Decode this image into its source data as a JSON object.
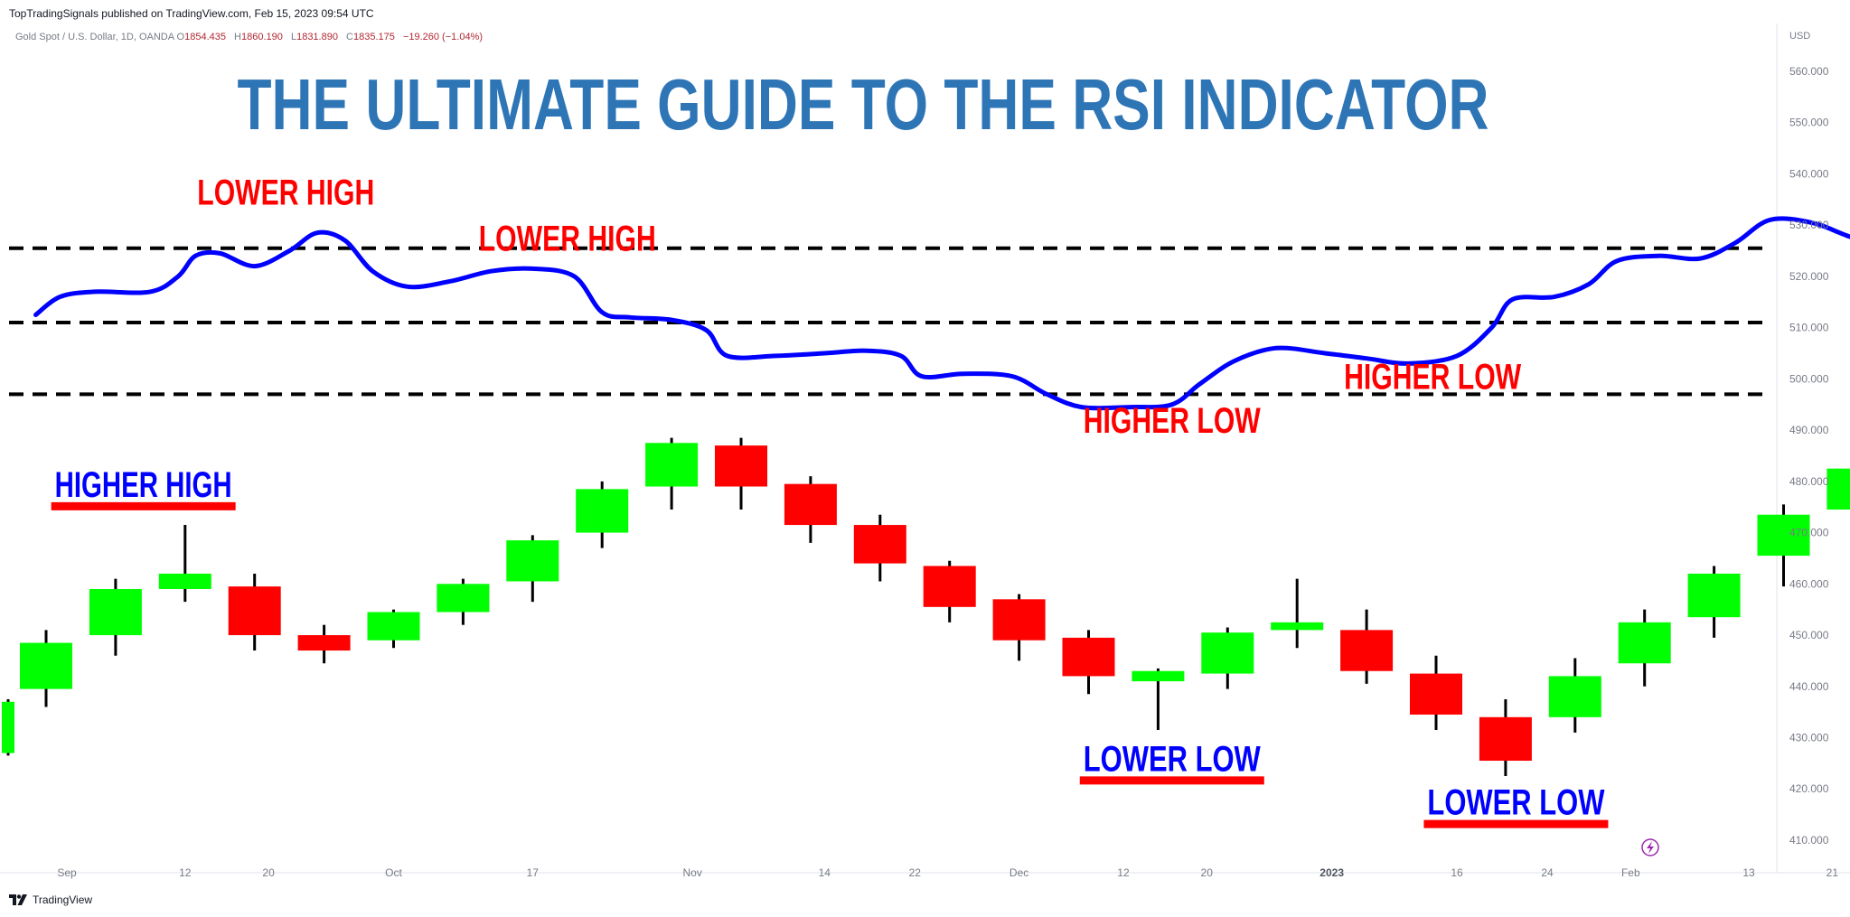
{
  "header": {
    "published": "TopTradingSignals published on TradingView.com, Feb 15, 2023 09:54 UTC",
    "symbol": "Gold Spot / U.S. Dollar, 1D, OANDA",
    "open_label": "O",
    "open": "1854.435",
    "high_label": "H",
    "high": "1860.190",
    "low_label": "L",
    "low": "1831.890",
    "close_label": "C",
    "close": "1835.175",
    "change": "−19.260 (−1.04%)",
    "currency": "USD"
  },
  "footer": {
    "brand": "TradingView",
    "logo_icon": "tradingview-logo-icon"
  },
  "colors": {
    "up": "#00ff00",
    "down": "#ff0000",
    "rsi": "#0000ff",
    "title": "#2e75b6",
    "annot_red": "#ff0000",
    "annot_blue": "#0000ff",
    "underline": "#ff0000"
  },
  "chart_data": {
    "type": "candlestick",
    "title": "THE ULTIMATE GUIDE TO THE RSI INDICATOR",
    "y_axis": {
      "side": "right",
      "range": [
        404,
        565
      ],
      "ticks": [
        "560.000",
        "550.000",
        "540.000",
        "530.000",
        "520.000",
        "510.000",
        "500.000",
        "490.000",
        "480.000",
        "470.000",
        "460.000",
        "450.000",
        "440.000",
        "430.000",
        "420.000",
        "410.000"
      ]
    },
    "x_ticks": [
      {
        "label": "Sep",
        "i": 0.3,
        "bold": false
      },
      {
        "label": "12",
        "i": 2.0,
        "bold": false
      },
      {
        "label": "20",
        "i": 3.2,
        "bold": false
      },
      {
        "label": "Oct",
        "i": 5.0,
        "bold": false
      },
      {
        "label": "17",
        "i": 7.0,
        "bold": false
      },
      {
        "label": "Nov",
        "i": 9.3,
        "bold": false
      },
      {
        "label": "14",
        "i": 11.2,
        "bold": false
      },
      {
        "label": "22",
        "i": 12.5,
        "bold": false
      },
      {
        "label": "Dec",
        "i": 14.0,
        "bold": false
      },
      {
        "label": "12",
        "i": 15.5,
        "bold": false
      },
      {
        "label": "20",
        "i": 16.7,
        "bold": false
      },
      {
        "label": "2023",
        "i": 18.5,
        "bold": true
      },
      {
        "label": "16",
        "i": 20.3,
        "bold": false
      },
      {
        "label": "24",
        "i": 21.6,
        "bold": false
      },
      {
        "label": "Feb",
        "i": 22.8,
        "bold": false
      },
      {
        "label": "13",
        "i": 24.5,
        "bold": false
      },
      {
        "label": "21",
        "i": 25.7,
        "bold": false
      }
    ],
    "candles": [
      {
        "o": 439.5,
        "h": 451,
        "l": 436,
        "c": 448.5
      },
      {
        "o": 450,
        "h": 461,
        "l": 446,
        "c": 459
      },
      {
        "o": 459,
        "h": 471.5,
        "l": 456.5,
        "c": 462
      },
      {
        "o": 459.5,
        "h": 462,
        "l": 447,
        "c": 450
      },
      {
        "o": 450,
        "h": 452,
        "l": 444.5,
        "c": 447
      },
      {
        "o": 449,
        "h": 455,
        "l": 447.5,
        "c": 454.5
      },
      {
        "o": 454.5,
        "h": 461,
        "l": 452,
        "c": 460
      },
      {
        "o": 460.5,
        "h": 469.5,
        "l": 456.5,
        "c": 468.5
      },
      {
        "o": 470,
        "h": 480,
        "l": 467,
        "c": 478.5
      },
      {
        "o": 479,
        "h": 488.5,
        "l": 474.5,
        "c": 487.5
      },
      {
        "o": 487,
        "h": 488.5,
        "l": 474.5,
        "c": 479
      },
      {
        "o": 479.5,
        "h": 481,
        "l": 468,
        "c": 471.5
      },
      {
        "o": 471.5,
        "h": 473.5,
        "l": 460.5,
        "c": 464
      },
      {
        "o": 463.5,
        "h": 464.5,
        "l": 452.5,
        "c": 455.5
      },
      {
        "o": 457,
        "h": 458,
        "l": 445,
        "c": 449
      },
      {
        "o": 449.5,
        "h": 451,
        "l": 438.5,
        "c": 442
      },
      {
        "o": 441,
        "h": 443.5,
        "l": 431.5,
        "c": 443
      },
      {
        "o": 442.5,
        "h": 451.5,
        "l": 439.5,
        "c": 450.5
      },
      {
        "o": 451,
        "h": 461,
        "l": 447.5,
        "c": 452.5
      },
      {
        "o": 451,
        "h": 455,
        "l": 440.5,
        "c": 443
      },
      {
        "o": 442.5,
        "h": 446,
        "l": 431.5,
        "c": 434.5
      },
      {
        "o": 434,
        "h": 437.5,
        "l": 422.5,
        "c": 425.5
      },
      {
        "o": 434,
        "h": 445.5,
        "l": 431,
        "c": 442
      },
      {
        "o": 444.5,
        "h": 455,
        "l": 440,
        "c": 452.5
      },
      {
        "o": 453.5,
        "h": 463.5,
        "l": 449.5,
        "c": 462
      },
      {
        "o": 465.5,
        "h": 475.5,
        "l": 459.5,
        "c": 473.5
      },
      {
        "o": 474.5,
        "h": 484.5,
        "l": 469.5,
        "c": 482.5
      }
    ],
    "partial_candle": {
      "o": 427,
      "h": 437.5,
      "l": 426.5,
      "c": 437
    },
    "rsi_line": [
      [
        -0.15,
        512.5
      ],
      [
        0.2,
        516
      ],
      [
        0.7,
        517
      ],
      [
        1.5,
        517
      ],
      [
        1.9,
        520
      ],
      [
        2.15,
        524
      ],
      [
        2.5,
        524.5
      ],
      [
        3.0,
        522
      ],
      [
        3.5,
        525
      ],
      [
        3.9,
        528.5
      ],
      [
        4.3,
        527
      ],
      [
        4.7,
        521
      ],
      [
        5.2,
        518
      ],
      [
        5.8,
        519
      ],
      [
        6.4,
        521
      ],
      [
        7.0,
        521.5
      ],
      [
        7.6,
        520
      ],
      [
        8.0,
        513
      ],
      [
        8.4,
        512
      ],
      [
        9.0,
        511.5
      ],
      [
        9.5,
        509.5
      ],
      [
        9.8,
        504.5
      ],
      [
        10.5,
        504.5
      ],
      [
        11.2,
        505
      ],
      [
        11.8,
        505.5
      ],
      [
        12.3,
        504.5
      ],
      [
        12.6,
        500.5
      ],
      [
        13.2,
        501
      ],
      [
        13.9,
        500.5
      ],
      [
        14.4,
        497
      ],
      [
        14.9,
        494.5
      ],
      [
        15.6,
        494.5
      ],
      [
        16.2,
        495
      ],
      [
        16.6,
        499
      ],
      [
        17.1,
        503.5
      ],
      [
        17.7,
        506
      ],
      [
        18.4,
        505
      ],
      [
        19.0,
        504
      ],
      [
        19.6,
        503
      ],
      [
        20.3,
        504.5
      ],
      [
        20.8,
        510
      ],
      [
        21.1,
        515.5
      ],
      [
        21.7,
        516
      ],
      [
        22.2,
        518.5
      ],
      [
        22.6,
        523
      ],
      [
        23.2,
        524
      ],
      [
        23.8,
        523.5
      ],
      [
        24.3,
        526.5
      ],
      [
        24.8,
        531
      ],
      [
        25.4,
        530.5
      ],
      [
        25.9,
        528
      ],
      [
        26.5,
        525
      ],
      [
        26.8,
        521
      ],
      [
        27.4,
        521.5
      ],
      [
        28.0,
        523.5
      ],
      [
        28.4,
        521.5
      ],
      [
        28.8,
        517.5
      ]
    ],
    "horizontal_lines": [
      525.5,
      511,
      497
    ],
    "annotations": [
      {
        "text": "LOWER HIGH",
        "color": "red",
        "i": 3.45,
        "y": 534,
        "underline": false
      },
      {
        "text": "LOWER HIGH",
        "color": "red",
        "i": 7.5,
        "y": 525,
        "underline": false
      },
      {
        "text": "HIGHER LOW",
        "color": "red",
        "i": 16.2,
        "y": 489.5,
        "underline": false
      },
      {
        "text": "HIGHER LOW",
        "color": "red",
        "i": 19.95,
        "y": 498,
        "underline": false
      },
      {
        "text": "HIGHER HIGH",
        "color": "blue",
        "i": 1.4,
        "y": 477,
        "underline": true
      },
      {
        "text": "LOWER LOW",
        "color": "blue",
        "i": 16.2,
        "y": 423.5,
        "underline": true
      },
      {
        "text": "LOWER LOW",
        "color": "blue",
        "i": 21.15,
        "y": 415,
        "underline": true
      }
    ],
    "grid": false
  }
}
